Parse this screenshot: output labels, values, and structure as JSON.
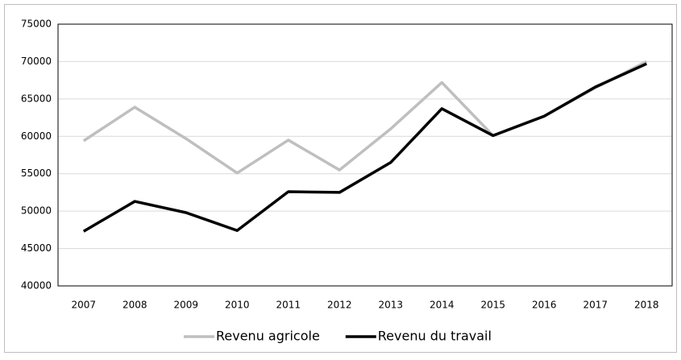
{
  "chart_data": {
    "type": "line",
    "categories": [
      "2007",
      "2008",
      "2009",
      "2010",
      "2011",
      "2012",
      "2013",
      "2014",
      "2015",
      "2016",
      "2017",
      "2018"
    ],
    "series": [
      {
        "name": "Revenu agricole",
        "color": "#bfbfbf",
        "values": [
          59400,
          63900,
          59700,
          55100,
          59500,
          55500,
          61000,
          67200,
          60100,
          62700,
          66500,
          70000
        ]
      },
      {
        "name": "Revenu du travail",
        "color": "#000000",
        "values": [
          47300,
          51300,
          49800,
          47400,
          52600,
          52500,
          56500,
          63700,
          60100,
          62700,
          66600,
          69700
        ]
      }
    ],
    "ylim": [
      40000,
      75000
    ],
    "yticks": [
      40000,
      45000,
      50000,
      55000,
      60000,
      65000,
      70000,
      75000
    ],
    "grid": true,
    "legend": "bottom"
  }
}
